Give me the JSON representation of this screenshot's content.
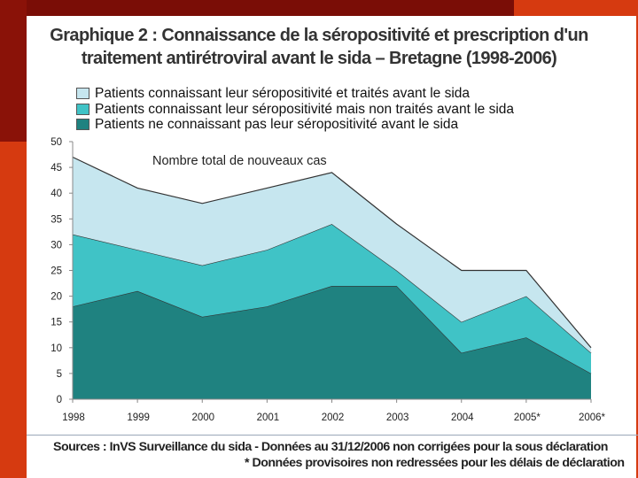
{
  "chart_data": {
    "type": "area",
    "stacked": true,
    "title_line1": "Graphique 2 : Connaissance de la séropositivité et prescription d'un",
    "title_line2": "traitement antirétroviral avant le sida – Bretagne (1998-2006)",
    "annotation": "Nombre total de nouveaux cas",
    "categories": [
      "1998",
      "1999",
      "2000",
      "2001",
      "2002",
      "2003",
      "2004",
      "2005*",
      "2006*"
    ],
    "ylim": [
      0,
      50
    ],
    "yticks": [
      "0",
      "5",
      "10",
      "15",
      "20",
      "25",
      "30",
      "35",
      "40",
      "45",
      "50"
    ],
    "series": [
      {
        "name": "Patients ne connaissant pas leur séropositivité avant le sida",
        "color": "#1f8280",
        "values": [
          18,
          21,
          16,
          18,
          22,
          22,
          9,
          12,
          5
        ]
      },
      {
        "name": "Patients connaissant leur séropositivité mais non traités avant le sida",
        "color": "#40c3c6",
        "values": [
          14,
          8,
          10,
          11,
          12,
          3,
          6,
          8,
          4
        ]
      },
      {
        "name": "Patients connaissant leur séropositivité et traités avant le sida",
        "color": "#c6e6ef",
        "values": [
          15,
          12,
          12,
          12,
          10,
          9,
          10,
          5,
          1
        ]
      }
    ],
    "legend_order": [
      2,
      1,
      0
    ]
  },
  "footer": {
    "sources": "Sources : InVS Surveillance du sida - Données au 31/12/2006 non corrigées pour la sous déclaration",
    "note": "* Données provisoires non redressées pour les délais de déclaration"
  }
}
